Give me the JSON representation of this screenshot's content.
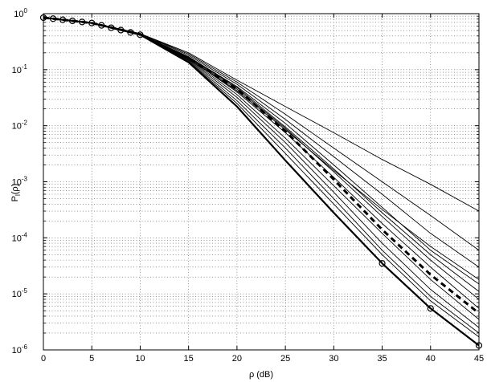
{
  "chart_data": {
    "type": "line",
    "title": "",
    "xlabel": "ρ (dB)",
    "ylabel_main": "P",
    "ylabel_sub": "l",
    "ylabel_tail": "(ρ)",
    "xlim": [
      0,
      45
    ],
    "ylim": [
      1e-06,
      1
    ],
    "yscale": "log",
    "grid": true,
    "x_ticks": [
      0,
      5,
      10,
      15,
      20,
      25,
      30,
      35,
      40,
      45
    ],
    "x_tick_labels": [
      "0",
      "5",
      "10",
      "15",
      "20",
      "25",
      "30",
      "35",
      "40",
      "45"
    ],
    "y_ticks": [
      1e-06,
      1e-05,
      0.0001,
      0.001,
      0.01,
      0.1,
      1
    ],
    "y_tick_base": "10",
    "y_tick_exponents": [
      "-6",
      "-5",
      "-4",
      "-3",
      "-2",
      "-1",
      "0"
    ],
    "x": [
      0,
      5,
      10,
      15,
      20,
      25,
      30,
      35,
      40,
      45
    ],
    "series": [
      {
        "style": "solid-circles",
        "values": [
          0.85,
          0.68,
          0.42,
          0.135,
          0.022,
          0.0024,
          0.00028,
          3.5e-05,
          5.5e-06,
          1.2e-06
        ]
      },
      {
        "style": "dashed-thick",
        "values": [
          0.85,
          0.68,
          0.43,
          0.16,
          0.045,
          0.008,
          0.0011,
          0.00014,
          2.2e-05,
          4.5e-06
        ]
      },
      {
        "style": "solid-thin",
        "values": [
          0.85,
          0.69,
          0.44,
          0.2,
          0.065,
          0.022,
          0.0075,
          0.0025,
          0.0009,
          0.0003
        ]
      },
      {
        "style": "solid-thin",
        "values": [
          0.85,
          0.69,
          0.44,
          0.19,
          0.06,
          0.016,
          0.004,
          0.001,
          0.00025,
          6e-05
        ]
      },
      {
        "style": "solid-thin",
        "values": [
          0.85,
          0.69,
          0.44,
          0.18,
          0.055,
          0.013,
          0.0028,
          0.0006,
          0.00012,
          3e-05
        ]
      },
      {
        "style": "solid-thin",
        "values": [
          0.85,
          0.68,
          0.43,
          0.17,
          0.05,
          0.011,
          0.002,
          0.00035,
          6e-05,
          1.5e-05
        ]
      },
      {
        "style": "solid-thin",
        "values": [
          0.85,
          0.68,
          0.43,
          0.165,
          0.045,
          0.009,
          0.0015,
          0.00024,
          4e-05,
          8e-06
        ]
      },
      {
        "style": "solid-thin",
        "values": [
          0.85,
          0.68,
          0.43,
          0.16,
          0.04,
          0.0075,
          0.0012,
          0.00018,
          3e-05,
          5.5e-06
        ]
      },
      {
        "style": "solid-thin",
        "values": [
          0.85,
          0.68,
          0.42,
          0.155,
          0.036,
          0.006,
          0.00085,
          0.00012,
          1.8e-05,
          3.5e-06
        ]
      },
      {
        "style": "solid-thin",
        "values": [
          0.85,
          0.68,
          0.42,
          0.15,
          0.032,
          0.005,
          0.00065,
          8e-05,
          1.2e-05,
          2.5e-06
        ]
      },
      {
        "style": "solid-thin",
        "values": [
          0.85,
          0.68,
          0.42,
          0.145,
          0.028,
          0.004,
          0.0005,
          6e-05,
          9e-06,
          2e-06
        ]
      },
      {
        "style": "solid-thin",
        "values": [
          0.85,
          0.68,
          0.42,
          0.14,
          0.025,
          0.0032,
          0.0004,
          5e-05,
          7.5e-06,
          1.7e-06
        ]
      },
      {
        "style": "solid-thin",
        "values": [
          0.85,
          0.68,
          0.43,
          0.17,
          0.048,
          0.0095,
          0.0017,
          0.00028,
          5e-05,
          1.1e-05
        ]
      },
      {
        "style": "solid-thin",
        "values": [
          0.85,
          0.68,
          0.43,
          0.16,
          0.042,
          0.0085,
          0.0016,
          0.00032,
          7e-05,
          1.8e-05
        ]
      }
    ]
  }
}
